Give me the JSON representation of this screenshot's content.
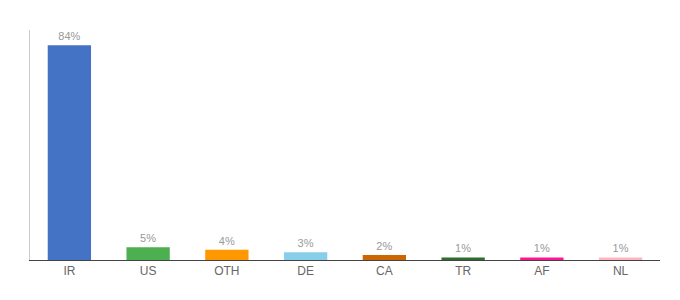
{
  "chart_data": {
    "type": "bar",
    "categories": [
      "IR",
      "US",
      "OTH",
      "DE",
      "CA",
      "TR",
      "AF",
      "NL"
    ],
    "values": [
      84,
      5,
      4,
      3,
      2,
      1,
      1,
      1
    ],
    "value_labels": [
      "84%",
      "5%",
      "4%",
      "3%",
      "2%",
      "1%",
      "1%",
      "1%"
    ],
    "colors": [
      "#4472C4",
      "#4CAF50",
      "#FF9800",
      "#87CEEB",
      "#CC6600",
      "#2E6B2E",
      "#FF1493",
      "#FFB6C1"
    ],
    "ylim": [
      0,
      90
    ],
    "data_labels": true,
    "tick_labels": "x",
    "grid": false
  }
}
